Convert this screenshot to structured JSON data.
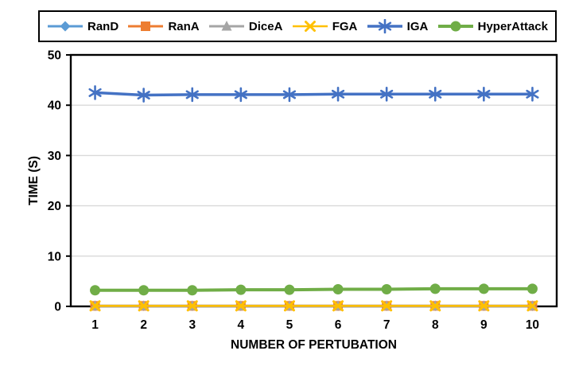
{
  "page": {
    "background": "#FFFFFF"
  },
  "legend": {
    "position": "top",
    "border_color": "#000000"
  },
  "chart_data": {
    "type": "line",
    "xlabel": "NUMBER OF PERTUBATION",
    "ylabel": "TIME (S)",
    "x": [
      1,
      2,
      3,
      4,
      5,
      6,
      7,
      8,
      9,
      10
    ],
    "ylim": [
      0,
      50
    ],
    "yticks": [
      0,
      10,
      20,
      30,
      40,
      50
    ],
    "grid": "horizontal",
    "grid_color": "#D9D9D9",
    "axis_color": "#000000",
    "tick_label_color": "#000000",
    "legend_position": "top",
    "series": [
      {
        "name": "RanD",
        "color": "#5B9BD5",
        "marker": "diamond",
        "values": [
          0.1,
          0.1,
          0.1,
          0.1,
          0.1,
          0.1,
          0.1,
          0.1,
          0.1,
          0.1
        ]
      },
      {
        "name": "RanA",
        "color": "#ED7D31",
        "marker": "square",
        "values": [
          0.1,
          0.1,
          0.1,
          0.1,
          0.1,
          0.1,
          0.1,
          0.1,
          0.1,
          0.1
        ]
      },
      {
        "name": "DiceA",
        "color": "#A5A5A5",
        "marker": "triangle",
        "values": [
          0.1,
          0.1,
          0.1,
          0.1,
          0.1,
          0.1,
          0.1,
          0.1,
          0.1,
          0.1
        ]
      },
      {
        "name": "FGA",
        "color": "#FFC000",
        "marker": "x",
        "values": [
          0.1,
          0.1,
          0.1,
          0.1,
          0.1,
          0.1,
          0.1,
          0.1,
          0.1,
          0.1
        ]
      },
      {
        "name": "IGA",
        "color": "#4472C4",
        "marker": "asterisk",
        "values": [
          42.5,
          42.0,
          42.1,
          42.1,
          42.1,
          42.2,
          42.2,
          42.2,
          42.2,
          42.2
        ]
      },
      {
        "name": "HyperAttack",
        "color": "#70AD47",
        "marker": "circle",
        "values": [
          3.2,
          3.2,
          3.2,
          3.3,
          3.3,
          3.4,
          3.4,
          3.5,
          3.5,
          3.5
        ]
      }
    ]
  }
}
